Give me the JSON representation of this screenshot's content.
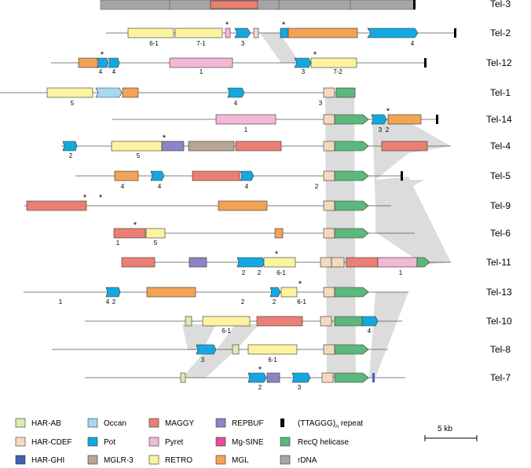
{
  "rows": [
    {
      "label": "Tel-3"
    },
    {
      "label": "Tel-2"
    },
    {
      "label": "Tel-12"
    },
    {
      "label": "Tel-1"
    },
    {
      "label": "Tel-14"
    },
    {
      "label": "Tel-4"
    },
    {
      "label": "Tel-5"
    },
    {
      "label": "Tel-9"
    },
    {
      "label": "Tel-6"
    },
    {
      "label": "Tel-11"
    },
    {
      "label": "Tel-13"
    },
    {
      "label": "Tel-10"
    },
    {
      "label": "Tel-8"
    },
    {
      "label": "Tel-7"
    }
  ],
  "legend": [
    {
      "key": "har_ab",
      "label": "HAR-AB",
      "color": "#d9ecb0"
    },
    {
      "key": "har_cdef",
      "label": "HAR-CDEF",
      "color": "#f6d8c0"
    },
    {
      "key": "har_ghi",
      "label": "HAR-GHI",
      "color": "#3f63b2"
    },
    {
      "key": "occan",
      "label": "Occan",
      "color": "#a8d8f0"
    },
    {
      "key": "pot",
      "label": "Pot",
      "color": "#15a8e0"
    },
    {
      "key": "mglr3",
      "label": "MGLR-3",
      "color": "#b7a596"
    },
    {
      "key": "maggy",
      "label": "MAGGY",
      "color": "#ec7f73"
    },
    {
      "key": "pyret",
      "label": "Pyret",
      "color": "#f2b8d6"
    },
    {
      "key": "retro",
      "label": "RETRO",
      "color": "#fbf3a0"
    },
    {
      "key": "repbuf",
      "label": "REPBUF",
      "color": "#8c84c4"
    },
    {
      "key": "mgsine",
      "label": "Mg-SINE",
      "color": "#e64d9c"
    },
    {
      "key": "mgl",
      "label": "MGL",
      "color": "#f2a356"
    },
    {
      "key": "ttaggg",
      "label": "(TTAGGG)n repeat",
      "color": "#000000"
    },
    {
      "key": "recq",
      "label": "RecQ helicase",
      "color": "#5cb87c"
    },
    {
      "key": "rdna",
      "label": "rDNA",
      "color": "#a6a6a6"
    }
  ],
  "repeat_label": {
    "base": "(TTAGGG)",
    "sub": "n",
    "rest": " repeat"
  },
  "scale_bar": {
    "label": "5 kb"
  },
  "element_labels": {
    "tel2": [
      "6-1",
      "7-1",
      "3",
      "4"
    ],
    "tel12": [
      "4",
      "4",
      "1",
      "3",
      "7-2"
    ],
    "tel1": [
      "5",
      "4",
      "3"
    ],
    "tel14": [
      "1",
      "3",
      "2"
    ],
    "tel4": [
      "2",
      "5"
    ],
    "tel5": [
      "4",
      "4",
      "4",
      "2"
    ],
    "tel6": [
      "1",
      "5"
    ],
    "tel11": [
      "2",
      "2",
      "6-1",
      "1"
    ],
    "tel13": [
      "1",
      "4",
      "2",
      "2",
      "2",
      "6-1"
    ],
    "tel10": [
      "6-1",
      "4"
    ],
    "tel8": [
      "3",
      "6-1"
    ],
    "tel7": [
      "2",
      "3"
    ]
  },
  "asterisk": "*"
}
